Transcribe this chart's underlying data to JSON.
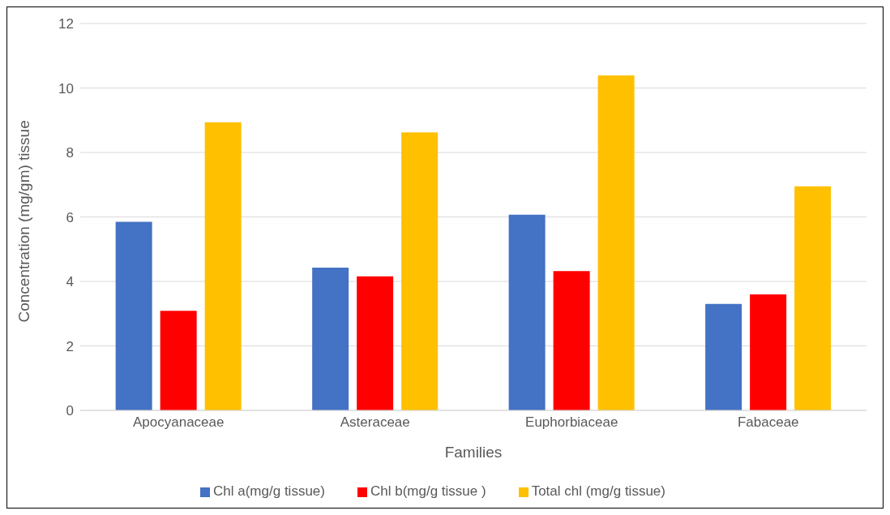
{
  "chart_data": {
    "type": "bar",
    "xlabel": "Families",
    "ylabel": "Concentration (mg/gm) tissue",
    "categories": [
      "Apocyanaceae",
      "Asteraceae",
      "Euphorbiaceae",
      "Fabaceae"
    ],
    "series": [
      {
        "name": "Chl a(mg/g tissue)",
        "color": "#4472c4",
        "values": [
          5.85,
          4.43,
          6.07,
          3.3
        ]
      },
      {
        "name": "Chl b(mg/g tissue )",
        "color": "#ff0000",
        "values": [
          3.09,
          4.16,
          4.32,
          3.6
        ]
      },
      {
        "name": "Total chl (mg/g tissue)",
        "color": "#ffc000",
        "values": [
          8.94,
          8.62,
          10.39,
          6.95
        ]
      }
    ],
    "ylim": [
      0,
      12
    ],
    "yticks": [
      0,
      2,
      4,
      6,
      8,
      10,
      12
    ],
    "grid": "y",
    "legend": "bottom"
  }
}
